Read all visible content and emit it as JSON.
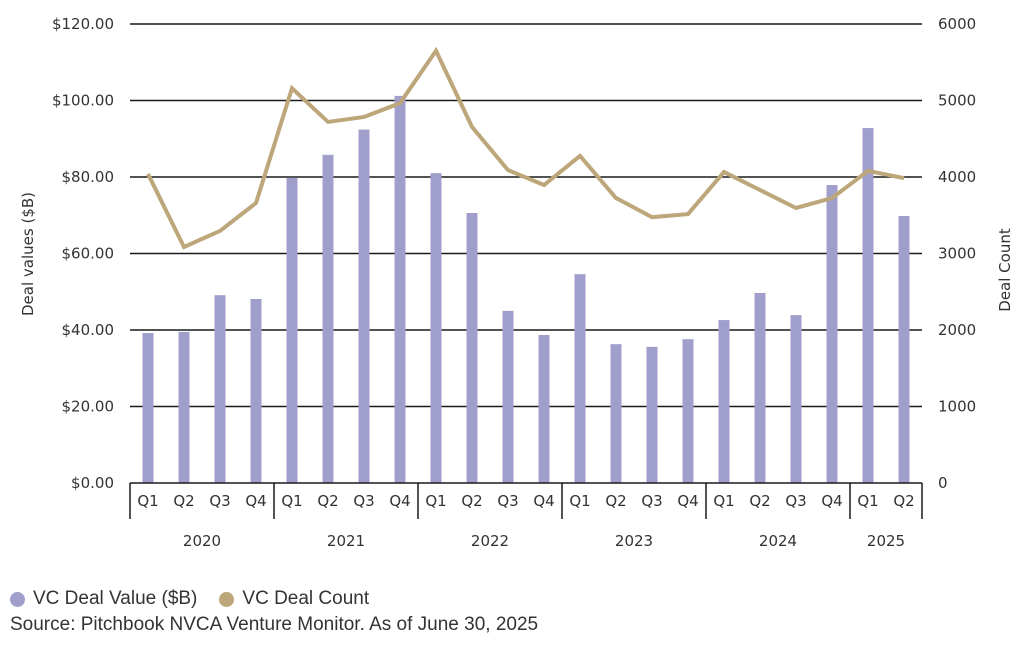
{
  "chart_data": {
    "type": "bar",
    "title": "",
    "xlabel": "",
    "ylabel": "Deal values ($B)",
    "y2label": "Deal Count",
    "ylim": [
      0,
      120
    ],
    "y2lim": [
      0,
      6000
    ],
    "yticks": [
      "$0.00",
      "$20.00",
      "$40.00",
      "$60.00",
      "$80.00",
      "$100.00",
      "$120.00"
    ],
    "ytick_values": [
      0,
      20,
      40,
      60,
      80,
      100,
      120
    ],
    "y2ticks": [
      "0",
      "1000",
      "2000",
      "3000",
      "4000",
      "5000",
      "6000"
    ],
    "y2tick_values": [
      0,
      1000,
      2000,
      3000,
      4000,
      5000,
      6000
    ],
    "grid": true,
    "legend_position": "bottom-left",
    "groups": [
      {
        "year": "2020",
        "quarters": [
          "Q1",
          "Q2",
          "Q3",
          "Q4"
        ]
      },
      {
        "year": "2021",
        "quarters": [
          "Q1",
          "Q2",
          "Q3",
          "Q4"
        ]
      },
      {
        "year": "2022",
        "quarters": [
          "Q1",
          "Q2",
          "Q3",
          "Q4"
        ]
      },
      {
        "year": "2023",
        "quarters": [
          "Q1",
          "Q2",
          "Q3",
          "Q4"
        ]
      },
      {
        "year": "2024",
        "quarters": [
          "Q1",
          "Q2",
          "Q3",
          "Q4"
        ]
      },
      {
        "year": "2025",
        "quarters": [
          "Q1",
          "Q2"
        ]
      }
    ],
    "categories": [
      "2020 Q1",
      "2020 Q2",
      "2020 Q3",
      "2020 Q4",
      "2021 Q1",
      "2021 Q2",
      "2021 Q3",
      "2021 Q4",
      "2022 Q1",
      "2022 Q2",
      "2022 Q3",
      "2022 Q4",
      "2023 Q1",
      "2023 Q2",
      "2023 Q3",
      "2023 Q4",
      "2024 Q1",
      "2024 Q2",
      "2024 Q3",
      "2024 Q4",
      "2025 Q1",
      "2025 Q2"
    ],
    "series": [
      {
        "name": "VC Deal Value ($B)",
        "type": "bar",
        "axis": "left",
        "color": "#a09fcc",
        "values": [
          39.2,
          39.5,
          49.1,
          48.1,
          79.8,
          85.8,
          92.4,
          101.2,
          81.0,
          70.6,
          45.0,
          38.7,
          54.6,
          36.3,
          35.6,
          37.6,
          42.6,
          49.7,
          43.9,
          77.9,
          92.8,
          69.8
        ]
      },
      {
        "name": "VC Deal Count",
        "type": "line",
        "axis": "right",
        "color": "#bca67a",
        "values": [
          4040,
          3085,
          3295,
          3660,
          5160,
          4720,
          4785,
          4965,
          5650,
          4655,
          4090,
          3895,
          4275,
          3725,
          3475,
          3515,
          4065,
          3830,
          3595,
          3725,
          4080,
          3985
        ]
      }
    ]
  },
  "legend": {
    "items": [
      {
        "label": "VC Deal Value ($B)",
        "color": "#a09fcc"
      },
      {
        "label": "VC Deal Count",
        "color": "#bca67a"
      }
    ]
  },
  "source": "Source: Pitchbook NVCA Venture Monitor. As of June 30, 2025"
}
